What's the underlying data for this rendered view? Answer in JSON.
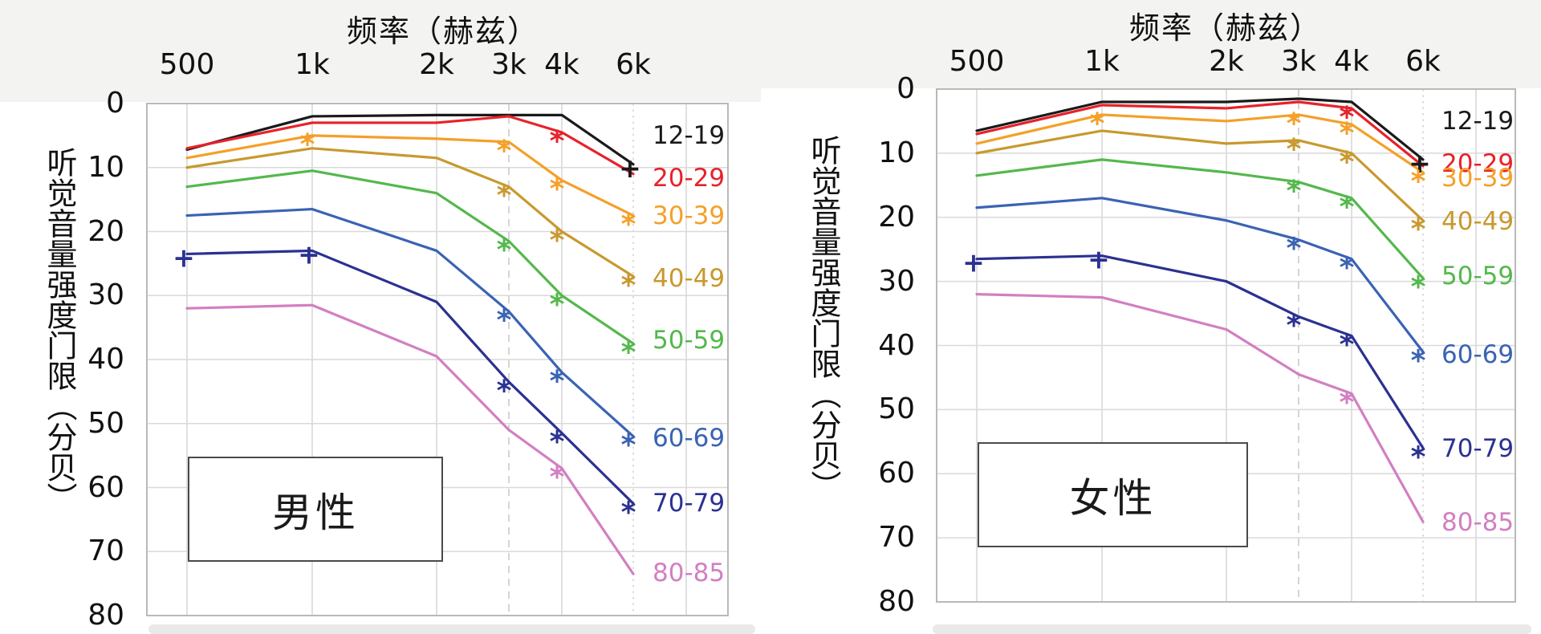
{
  "figure_colors": {
    "background": "#ffffff",
    "top_band": "#f3f3f1",
    "bottom_bar": "#e9e9e9",
    "grid": "#d9d9d9",
    "grid_dashed": "#c9c9c9",
    "grid_dotted": "#d4d4d4",
    "plot_border": "#b9b9b9"
  },
  "chart_data": [
    {
      "type": "line",
      "panel_label": "男性",
      "x_axis_title": "频率（赫兹）",
      "y_axis_title": "听觉音量强度门限（分贝）",
      "x_categories": [
        "500",
        "1k",
        "2k",
        "3k",
        "4k",
        "6k"
      ],
      "y_ticks": [
        0,
        10,
        20,
        30,
        40,
        50,
        60,
        70,
        80
      ],
      "ylim": [
        0,
        80
      ],
      "y_inverted": true,
      "grid": true,
      "legend_position": "right-inside",
      "series": [
        {
          "name": "12-19",
          "color": "#1a1a1a",
          "values": [
            7.2,
            2,
            1.8,
            1.8,
            1.8,
            9.5
          ],
          "label_db": 5,
          "markers": [
            {
              "x": "6k",
              "symbol": "+"
            }
          ]
        },
        {
          "name": "20-29",
          "color": "#e8212b",
          "values": [
            7,
            3,
            3,
            2,
            4.5,
            11
          ],
          "label_db": 11.6,
          "markers": [
            {
              "x": "4k",
              "symbol": "*"
            }
          ]
        },
        {
          "name": "30-39",
          "color": "#f4a028",
          "values": [
            8.5,
            5,
            5.5,
            6,
            12,
            17.5
          ],
          "label_db": 17.5,
          "markers": [
            {
              "x": "1k",
              "symbol": "*"
            },
            {
              "x": "3k",
              "symbol": "*"
            },
            {
              "x": "4k",
              "symbol": "*"
            },
            {
              "x": "6k",
              "symbol": "*"
            }
          ]
        },
        {
          "name": "40-49",
          "color": "#c8992e",
          "values": [
            10,
            7,
            8.5,
            13,
            20,
            27
          ],
          "label_db": 27.3,
          "markers": [
            {
              "x": "3k",
              "symbol": "*"
            },
            {
              "x": "4k",
              "symbol": "*"
            },
            {
              "x": "6k",
              "symbol": "*"
            }
          ]
        },
        {
          "name": "50-59",
          "color": "#54b84c",
          "values": [
            13,
            10.5,
            14,
            21.5,
            30,
            37.5
          ],
          "label_db": 37,
          "markers": [
            {
              "x": "3k",
              "symbol": "*"
            },
            {
              "x": "4k",
              "symbol": "*"
            },
            {
              "x": "6k",
              "symbol": "*"
            }
          ]
        },
        {
          "name": "60-69",
          "color": "#3a63b3",
          "values": [
            17.5,
            16.5,
            23,
            32.5,
            42,
            52
          ],
          "label_db": 52.3,
          "markers": [
            {
              "x": "3k",
              "symbol": "*"
            },
            {
              "x": "4k",
              "symbol": "*"
            },
            {
              "x": "6k",
              "symbol": "*"
            }
          ]
        },
        {
          "name": "70-79",
          "color": "#2b3191",
          "values": [
            23.5,
            23,
            31,
            43.5,
            51.5,
            62.5
          ],
          "label_db": 62.4,
          "markers": [
            {
              "x": "500",
              "symbol": "+"
            },
            {
              "x": "1k",
              "symbol": "+"
            },
            {
              "x": "3k",
              "symbol": "*"
            },
            {
              "x": "4k",
              "symbol": "*"
            },
            {
              "x": "6k",
              "symbol": "*"
            }
          ]
        },
        {
          "name": "80-85",
          "color": "#d27fc2",
          "values": [
            32,
            31.5,
            39.5,
            51,
            57,
            73.5
          ],
          "label_db": 73.3,
          "markers": [
            {
              "x": "4k",
              "symbol": "*"
            }
          ]
        }
      ]
    },
    {
      "type": "line",
      "panel_label": "女性",
      "x_axis_title": "频率（赫兹）",
      "y_axis_title": "听觉音量强度门限（分贝）",
      "x_categories": [
        "500",
        "1k",
        "2k",
        "3k",
        "4k",
        "6k"
      ],
      "y_ticks": [
        0,
        10,
        20,
        30,
        40,
        50,
        60,
        70,
        80
      ],
      "ylim": [
        0,
        80
      ],
      "y_inverted": true,
      "grid": true,
      "legend_position": "right-inside",
      "series": [
        {
          "name": "12-19",
          "color": "#1a1a1a",
          "values": [
            6.5,
            2,
            2,
            1.5,
            2,
            11
          ],
          "label_db": 5,
          "markers": [
            {
              "x": "6k",
              "symbol": "+"
            }
          ]
        },
        {
          "name": "20-29",
          "color": "#e8212b",
          "values": [
            7,
            2.5,
            3,
            2,
            3,
            12
          ],
          "label_db": 11.6,
          "markers": [
            {
              "x": "4k",
              "symbol": "*"
            }
          ]
        },
        {
          "name": "30-39",
          "color": "#f4a028",
          "values": [
            8.5,
            4,
            5,
            4,
            5.5,
            13
          ],
          "label_db": 13.9,
          "markers": [
            {
              "x": "1k",
              "symbol": "*"
            },
            {
              "x": "3k",
              "symbol": "*"
            },
            {
              "x": "4k",
              "symbol": "*"
            },
            {
              "x": "6k",
              "symbol": "*"
            }
          ]
        },
        {
          "name": "40-49",
          "color": "#c8992e",
          "values": [
            10,
            6.5,
            8.5,
            8,
            10,
            20.5
          ],
          "label_db": 20.6,
          "markers": [
            {
              "x": "3k",
              "symbol": "*"
            },
            {
              "x": "4k",
              "symbol": "*"
            },
            {
              "x": "6k",
              "symbol": "*"
            }
          ]
        },
        {
          "name": "50-59",
          "color": "#54b84c",
          "values": [
            13.5,
            11,
            13,
            14.5,
            17,
            29.5
          ],
          "label_db": 29.2,
          "markers": [
            {
              "x": "3k",
              "symbol": "*"
            },
            {
              "x": "4k",
              "symbol": "*"
            },
            {
              "x": "6k",
              "symbol": "*"
            }
          ]
        },
        {
          "name": "60-69",
          "color": "#3a63b3",
          "values": [
            18.5,
            17,
            20.5,
            23.5,
            26.5,
            41
          ],
          "label_db": 41.4,
          "markers": [
            {
              "x": "3k",
              "symbol": "*"
            },
            {
              "x": "4k",
              "symbol": "*"
            },
            {
              "x": "6k",
              "symbol": "*"
            }
          ]
        },
        {
          "name": "70-79",
          "color": "#2b3191",
          "values": [
            26.5,
            26,
            30,
            35.5,
            38.5,
            56
          ],
          "label_db": 56.1,
          "markers": [
            {
              "x": "500",
              "symbol": "+"
            },
            {
              "x": "1k",
              "symbol": "+"
            },
            {
              "x": "3k",
              "symbol": "*"
            },
            {
              "x": "4k",
              "symbol": "*"
            },
            {
              "x": "6k",
              "symbol": "*"
            }
          ]
        },
        {
          "name": "80-85",
          "color": "#d27fc2",
          "values": [
            32,
            32.5,
            37.5,
            44.5,
            47.5,
            67.5
          ],
          "label_db": 67.6,
          "markers": [
            {
              "x": "4k",
              "symbol": "*"
            }
          ]
        }
      ]
    }
  ]
}
